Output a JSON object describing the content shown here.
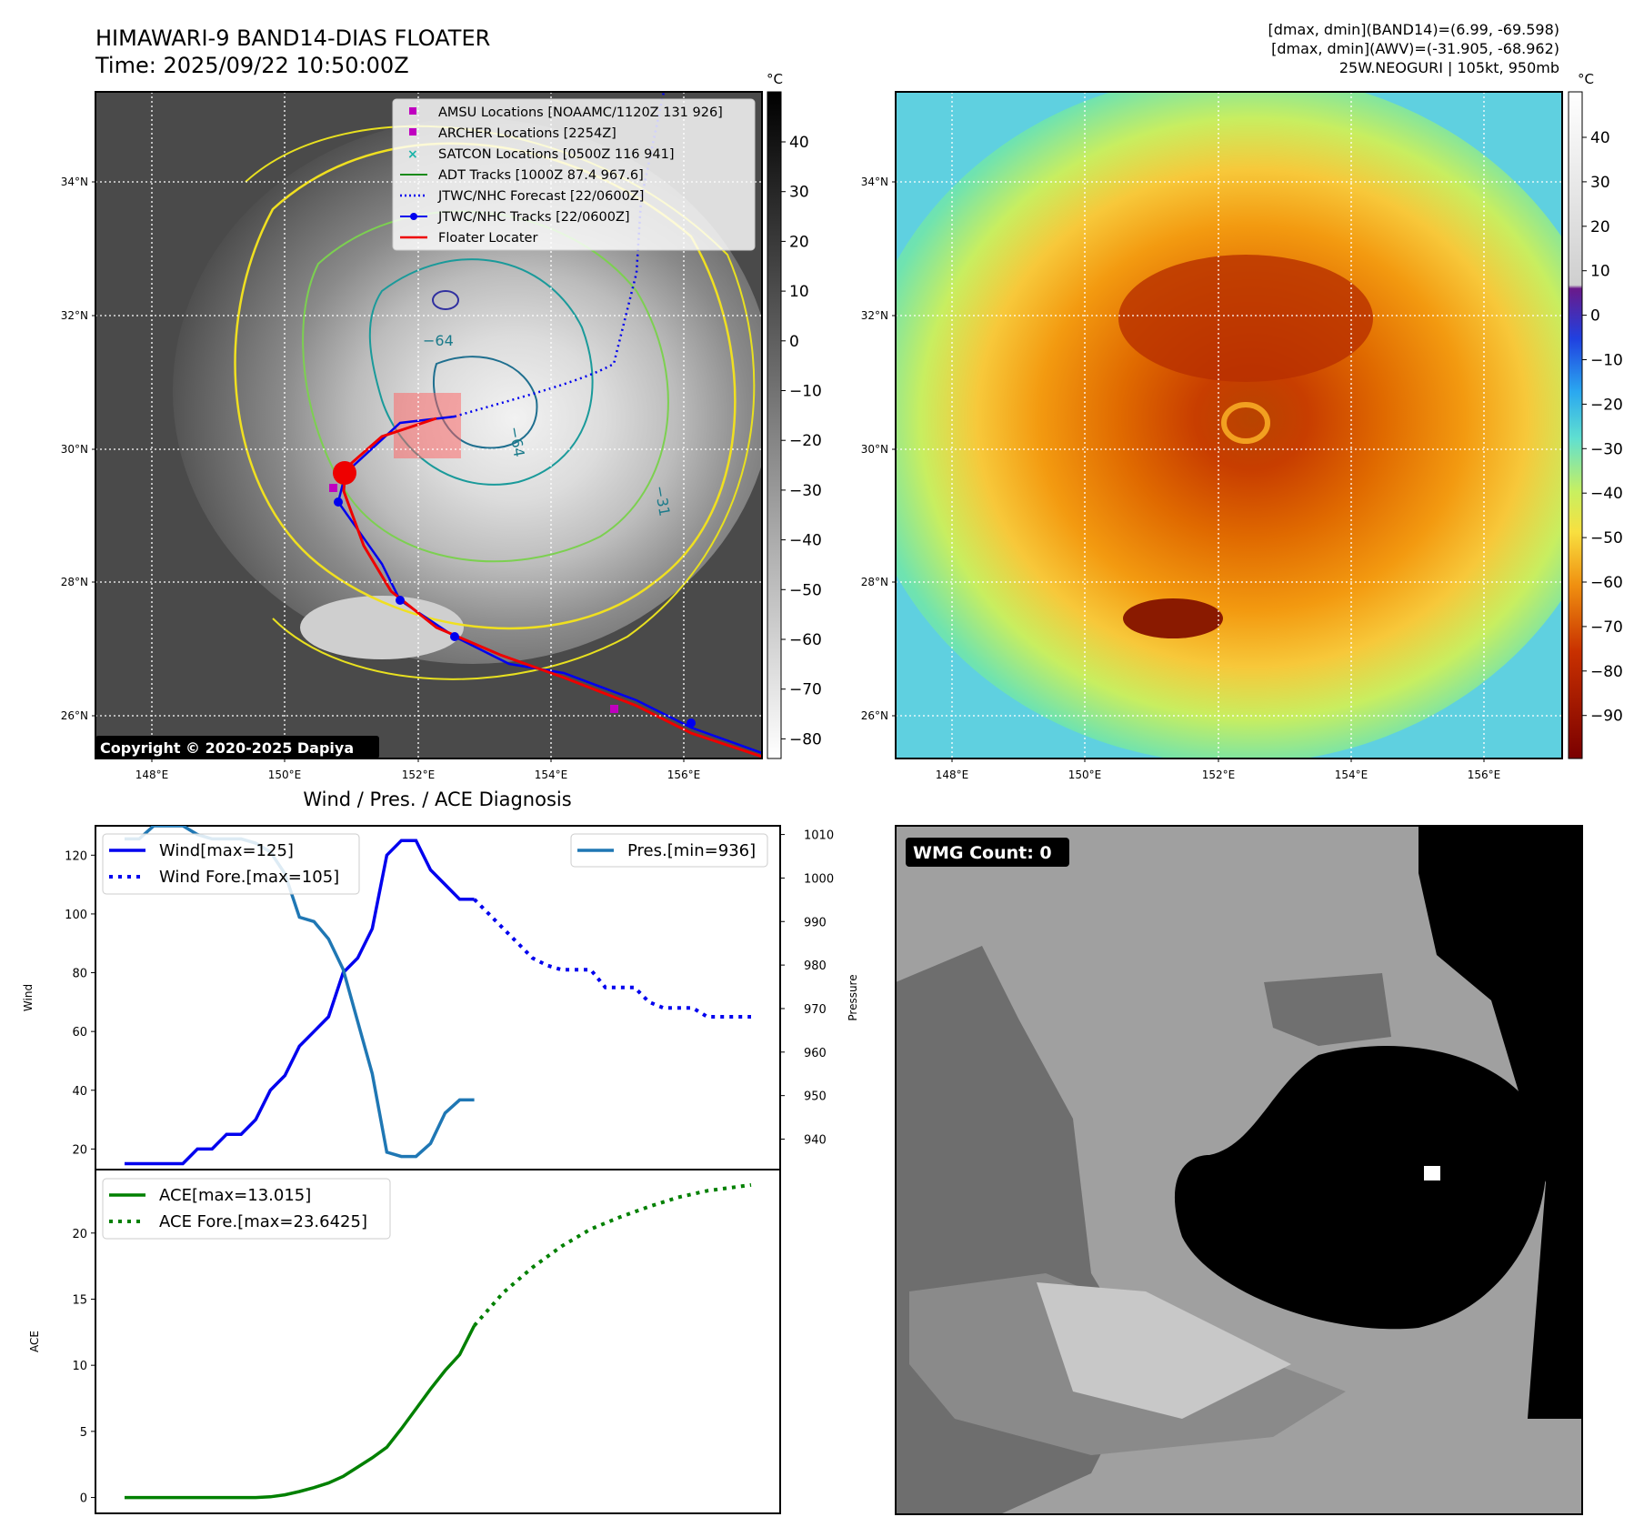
{
  "header": {
    "title_line1": "HIMAWARI-9 BAND14-DIAS FLOATER",
    "title_line2": "Time: 2025/09/22 10:50:00Z",
    "info_line1": "[dmax, dmin](BAND14)=(6.99, -69.598)",
    "info_line2": "[dmax, dmin](AWV)=(-31.905, -68.962)",
    "info_line3": "25W.NEOGURI | 105kt, 950mb"
  },
  "map_axes": {
    "lon_ticks": [
      "148°E",
      "150°E",
      "152°E",
      "154°E",
      "156°E"
    ],
    "lat_ticks": [
      "26°N",
      "28°N",
      "30°N",
      "32°N",
      "34°N"
    ]
  },
  "ir_panel": {
    "copyright": "Copyright © 2020-2025 Dapiya",
    "colorbar_unit": "°C",
    "colorbar_ticks": [
      "40",
      "30",
      "20",
      "10",
      "0",
      "−10",
      "−20",
      "−30",
      "−40",
      "−50",
      "−60",
      "−70",
      "−80"
    ],
    "contour_labels": [
      "−64",
      "−64",
      "−31"
    ],
    "legend": [
      {
        "label": "AMSU Locations [NOAAMC/1120Z 131 926]",
        "color": "#c000c0",
        "kind": "square"
      },
      {
        "label": "ARCHER Locations [2254Z]",
        "color": "#c000c0",
        "kind": "square"
      },
      {
        "label": "SATCON Locations [0500Z 116 941]",
        "color": "#19b3a8",
        "kind": "x"
      },
      {
        "label": "ADT Tracks [1000Z 87.4 967.6]",
        "color": "#1a8a1a",
        "kind": "line"
      },
      {
        "label": "JTWC/NHC Forecast [22/0600Z]",
        "color": "#0000ee",
        "kind": "dotted"
      },
      {
        "label": "JTWC/NHC Tracks [22/0600Z]",
        "color": "#0000ee",
        "kind": "line-marker"
      },
      {
        "label": "Floater Locater",
        "color": "#ee0000",
        "kind": "line"
      }
    ]
  },
  "awv_panel": {
    "colorbar_unit": "°C",
    "colorbar_ticks": [
      "40",
      "30",
      "20",
      "10",
      "0",
      "−10",
      "−20",
      "−30",
      "−40",
      "−50",
      "−60",
      "−70",
      "−80",
      "−90"
    ]
  },
  "wmg_panel": {
    "count_label": "WMG Count: 0"
  },
  "diagnosis": {
    "title": "Wind / Pres. / ACE Diagnosis",
    "wind_ylabel": "Wind",
    "pres_ylabel": "Pressure",
    "ace_ylabel": "ACE",
    "wind_legend": [
      "Wind[max=125]",
      "Wind Fore.[max=105]"
    ],
    "pres_legend": [
      "Pres.[min=936]"
    ],
    "ace_legend": [
      "ACE[max=13.015]",
      "ACE Fore.[max=23.6425]"
    ]
  },
  "chart_data": [
    {
      "type": "line",
      "title": "Wind / Pres. / ACE Diagnosis",
      "ylabel": "Wind",
      "ylim": [
        13,
        130
      ],
      "yticks": [
        20,
        40,
        60,
        80,
        100,
        120
      ],
      "colors": {
        "wind": "#0000ee",
        "pres": "#1f77b4"
      },
      "series": [
        {
          "name": "Wind[max=125]",
          "style": "solid",
          "x": [
            0,
            1,
            2,
            3,
            4,
            5,
            6,
            7,
            8,
            9,
            10,
            11,
            12,
            13,
            14,
            15,
            16,
            17,
            18,
            19,
            20,
            21,
            22,
            23,
            24
          ],
          "values": [
            15,
            15,
            15,
            15,
            15,
            20,
            20,
            25,
            25,
            30,
            40,
            45,
            55,
            60,
            65,
            80,
            85,
            95,
            120,
            125,
            125,
            115,
            110,
            105,
            105
          ]
        },
        {
          "name": "Wind Fore.[max=105]",
          "style": "dotted",
          "x": [
            24,
            25,
            26,
            27,
            28,
            29,
            30,
            31,
            32,
            33,
            34,
            35,
            36,
            37,
            38,
            39,
            40,
            41,
            42,
            43
          ],
          "values": [
            105,
            100,
            95,
            90,
            85,
            82.5,
            81,
            81,
            81,
            75,
            75,
            75,
            70,
            68,
            68,
            68,
            65,
            65,
            65,
            65
          ]
        }
      ],
      "secondary_axis": {
        "ylabel": "Pressure",
        "ylim": [
          933,
          1012
        ],
        "yticks": [
          940,
          950,
          960,
          970,
          980,
          990,
          1000,
          1010
        ],
        "series": [
          {
            "name": "Pres.[min=936]",
            "x": [
              0,
              1,
              2,
              3,
              4,
              5,
              6,
              7,
              8,
              9,
              10,
              11,
              12,
              13,
              14,
              15,
              16,
              17,
              18,
              19,
              20,
              21,
              22,
              23,
              24
            ],
            "values": [
              1009,
              1009,
              1012,
              1012,
              1012,
              1010,
              1009,
              1009,
              1009,
              1008,
              1006,
              1001,
              991,
              990,
              986,
              979,
              967,
              955,
              937,
              936,
              936,
              939,
              946,
              949,
              949
            ]
          }
        ]
      }
    },
    {
      "type": "line",
      "ylabel": "ACE",
      "ylim": [
        -1.2,
        24.8
      ],
      "yticks": [
        0,
        5,
        10,
        15,
        20
      ],
      "colors": {
        "ace": "#008000"
      },
      "series": [
        {
          "name": "ACE[max=13.015]",
          "style": "solid",
          "x": [
            0,
            1,
            2,
            3,
            4,
            5,
            6,
            7,
            8,
            9,
            10,
            11,
            12,
            13,
            14,
            15,
            16,
            17,
            18,
            19,
            20,
            21,
            22,
            23,
            24
          ],
          "values": [
            0,
            0,
            0,
            0,
            0,
            0,
            0,
            0,
            0,
            0,
            0.05,
            0.2,
            0.45,
            0.75,
            1.1,
            1.6,
            2.3,
            3.0,
            3.8,
            5.2,
            6.7,
            8.2,
            9.6,
            10.8,
            13.0
          ]
        },
        {
          "name": "ACE Fore.[max=23.6425]",
          "style": "dotted",
          "x": [
            24,
            26,
            28,
            30,
            32,
            34,
            36,
            38,
            40,
            43
          ],
          "values": [
            13.0,
            15.5,
            17.4,
            19.0,
            20.3,
            21.2,
            22.0,
            22.7,
            23.2,
            23.64
          ]
        }
      ]
    }
  ]
}
